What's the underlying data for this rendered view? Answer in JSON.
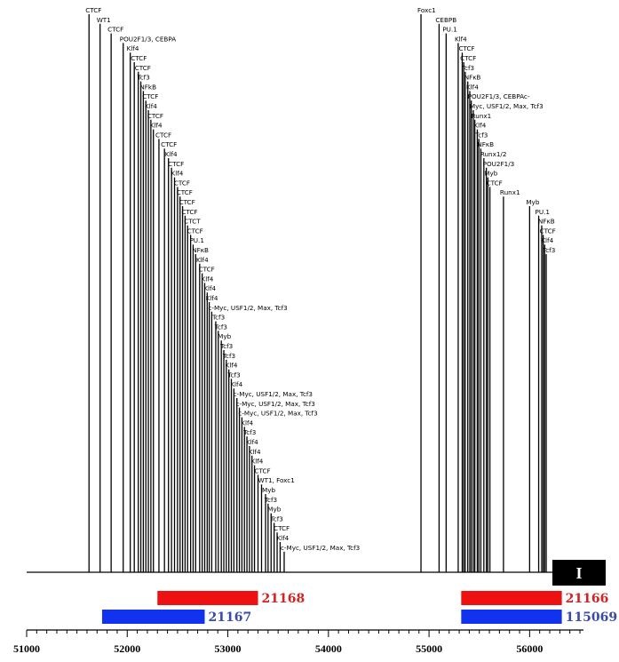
{
  "region_label": "I",
  "axis": {
    "min": 51000,
    "max": 56500,
    "ticks": [
      51000,
      52000,
      53000,
      54000,
      55000,
      56000
    ]
  },
  "colors": {
    "red": "#ee1111",
    "blue": "#1133ee",
    "red_text": "#d42222",
    "blue_text": "#3a4aa8"
  },
  "bars": [
    {
      "id": "21168",
      "start": 52300,
      "end": 53300,
      "color": "red",
      "row": 0
    },
    {
      "id": "21166",
      "start": 55320,
      "end": 56320,
      "color": "red",
      "row": 0
    },
    {
      "id": "21167",
      "start": 51750,
      "end": 52770,
      "color": "blue",
      "row": 1
    },
    {
      "id": "115069",
      "start": 55320,
      "end": 56320,
      "color": "blue",
      "row": 1
    }
  ],
  "sites": [
    {
      "pos": 51620,
      "label": "CTCF"
    },
    {
      "pos": 51730,
      "label": "WT1"
    },
    {
      "pos": 51840,
      "label": "CTCF"
    },
    {
      "pos": 51960,
      "label": "POU2F1/3, CEBPA"
    },
    {
      "pos": 52030,
      "label": "Klf4"
    },
    {
      "pos": 52070,
      "label": "CTCF"
    },
    {
      "pos": 52110,
      "label": "CTCF"
    },
    {
      "pos": 52135,
      "label": "Tcf3"
    },
    {
      "pos": 52160,
      "label": "NFkB"
    },
    {
      "pos": 52185,
      "label": "CTCF"
    },
    {
      "pos": 52210,
      "label": "Klf4"
    },
    {
      "pos": 52235,
      "label": "CTCF"
    },
    {
      "pos": 52260,
      "label": "Klf4"
    },
    {
      "pos": 52315,
      "label": "CTCF"
    },
    {
      "pos": 52370,
      "label": "CTCF"
    },
    {
      "pos": 52410,
      "label": "Klf4"
    },
    {
      "pos": 52440,
      "label": "CTCF"
    },
    {
      "pos": 52470,
      "label": "Klf4"
    },
    {
      "pos": 52500,
      "label": "CTCF"
    },
    {
      "pos": 52525,
      "label": "CTCF"
    },
    {
      "pos": 52550,
      "label": "CTCF"
    },
    {
      "pos": 52575,
      "label": "CTCF"
    },
    {
      "pos": 52600,
      "label": "CTCT"
    },
    {
      "pos": 52630,
      "label": "CTCF"
    },
    {
      "pos": 52655,
      "label": "PU.1"
    },
    {
      "pos": 52680,
      "label": "NFκB"
    },
    {
      "pos": 52720,
      "label": "Klf4"
    },
    {
      "pos": 52745,
      "label": "CTCF"
    },
    {
      "pos": 52770,
      "label": "Klf4"
    },
    {
      "pos": 52795,
      "label": "Klf4"
    },
    {
      "pos": 52815,
      "label": "Klf4"
    },
    {
      "pos": 52840,
      "label": "c-Myc, USF1/2, Max, Tcf3"
    },
    {
      "pos": 52880,
      "label": "Tcf3"
    },
    {
      "pos": 52905,
      "label": "Tcf3"
    },
    {
      "pos": 52935,
      "label": "Myb"
    },
    {
      "pos": 52960,
      "label": "Tcf3"
    },
    {
      "pos": 52985,
      "label": "Tcf3"
    },
    {
      "pos": 53010,
      "label": "Klf4"
    },
    {
      "pos": 53035,
      "label": "Tcf3"
    },
    {
      "pos": 53060,
      "label": "Klf4"
    },
    {
      "pos": 53090,
      "label": "c-Myc, USF1/2, Max, Tcf3"
    },
    {
      "pos": 53115,
      "label": "c-Myc, USF1/2, Max, Tcf3"
    },
    {
      "pos": 53140,
      "label": "c-Myc, USF1/2, Max, Tcf3"
    },
    {
      "pos": 53165,
      "label": "Klf4"
    },
    {
      "pos": 53190,
      "label": "Tcf3"
    },
    {
      "pos": 53215,
      "label": "Klf4"
    },
    {
      "pos": 53240,
      "label": "Klf4"
    },
    {
      "pos": 53265,
      "label": "Klf4"
    },
    {
      "pos": 53300,
      "label": "CTCF"
    },
    {
      "pos": 53335,
      "label": "WT1, Foxc1"
    },
    {
      "pos": 53375,
      "label": "Myb"
    },
    {
      "pos": 53400,
      "label": "Tcf3"
    },
    {
      "pos": 53430,
      "label": "Myb"
    },
    {
      "pos": 53460,
      "label": "Tcf3"
    },
    {
      "pos": 53490,
      "label": "CTCF"
    },
    {
      "pos": 53520,
      "label": "Klf4"
    },
    {
      "pos": 53560,
      "label": "c-Myc, USF1/2, Max, Tcf3"
    },
    {
      "pos": 54920,
      "label": "Foxc1"
    },
    {
      "pos": 55100,
      "label": "CEBPB"
    },
    {
      "pos": 55170,
      "label": "PU.1"
    },
    {
      "pos": 55290,
      "label": "Klf4"
    },
    {
      "pos": 55330,
      "label": "CTCF"
    },
    {
      "pos": 55345,
      "label": "CTCF"
    },
    {
      "pos": 55360,
      "label": "Tcf3"
    },
    {
      "pos": 55385,
      "label": "NFκB"
    },
    {
      "pos": 55405,
      "label": "Klf4"
    },
    {
      "pos": 55420,
      "label": "POU2F1/3, CEBPAc-"
    },
    {
      "pos": 55440,
      "label": "Myc, USF1/2, Max, Tcf3"
    },
    {
      "pos": 55455,
      "label": "Runx1"
    },
    {
      "pos": 55480,
      "label": "Klf4"
    },
    {
      "pos": 55495,
      "label": "Tcf3"
    },
    {
      "pos": 55515,
      "label": "NFκB"
    },
    {
      "pos": 55545,
      "label": "Runx1/2"
    },
    {
      "pos": 55570,
      "label": "POU2F1/3"
    },
    {
      "pos": 55585,
      "label": "Myb"
    },
    {
      "pos": 55605,
      "label": "CTCF"
    },
    {
      "pos": 55740,
      "label": "Runx1"
    },
    {
      "pos": 56000,
      "label": "Myb"
    },
    {
      "pos": 56090,
      "label": "PU.1"
    },
    {
      "pos": 56120,
      "label": "NFκB"
    },
    {
      "pos": 56135,
      "label": "CTCF"
    },
    {
      "pos": 56150,
      "label": "Klf4"
    },
    {
      "pos": 56165,
      "label": "Tcf3"
    }
  ]
}
